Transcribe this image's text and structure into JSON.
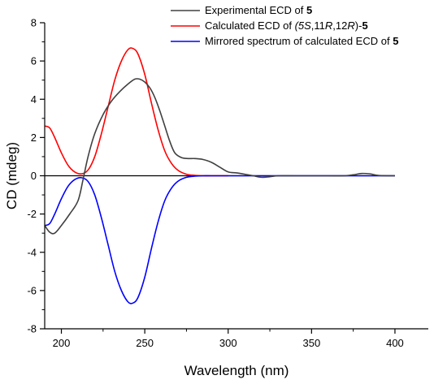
{
  "chart_data": {
    "type": "line",
    "xlabel": "Wavelength (nm)",
    "ylabel": "CD (mdeg)",
    "xlim": [
      190,
      420
    ],
    "ylim": [
      -8,
      8
    ],
    "x_ticks": [
      200,
      250,
      300,
      350,
      400
    ],
    "y_ticks": [
      -8,
      -6,
      -4,
      -2,
      0,
      2,
      4,
      6,
      8
    ],
    "grid": false,
    "legend_position": "top-right",
    "series": [
      {
        "name": "Experimental ECD of 5",
        "legend_parts": [
          {
            "text": "Experimental ECD of "
          },
          {
            "text": "5",
            "bold": true
          }
        ],
        "color": "#404040",
        "x": [
          190,
          193,
          196,
          200,
          205,
          210,
          213,
          216,
          220,
          225,
          230,
          235,
          240,
          244,
          247,
          250,
          253,
          256,
          259,
          262,
          265,
          268,
          272,
          276,
          280,
          285,
          290,
          295,
          300,
          305,
          310,
          315,
          320,
          325,
          330,
          340,
          350,
          360,
          370,
          375,
          380,
          385,
          390,
          400
        ],
        "y": [
          -2.6,
          -2.95,
          -3.0,
          -2.6,
          -2.0,
          -1.3,
          -0.2,
          1.0,
          2.2,
          3.2,
          3.9,
          4.4,
          4.8,
          5.05,
          5.05,
          4.9,
          4.6,
          4.1,
          3.4,
          2.6,
          1.8,
          1.2,
          0.95,
          0.9,
          0.9,
          0.85,
          0.7,
          0.45,
          0.2,
          0.15,
          0.08,
          0.0,
          -0.08,
          -0.05,
          0.0,
          0.0,
          0.0,
          0.0,
          0.0,
          0.05,
          0.12,
          0.1,
          0.02,
          0.0
        ]
      },
      {
        "name": "Calculated ECD of (5S,11R,12R)-5",
        "legend_parts": [
          {
            "text": "Calculated ECD of "
          },
          {
            "text": "(5",
            "italic": true
          },
          {
            "text": "S",
            "italic": true
          },
          {
            "text": ",11"
          },
          {
            "text": "R",
            "italic": true
          },
          {
            "text": ",12"
          },
          {
            "text": "R",
            "italic": true
          },
          {
            "text": ")-"
          },
          {
            "text": "5",
            "bold": true
          }
        ],
        "color": "#ff0000",
        "x": [
          190,
          193,
          196,
          200,
          204,
          208,
          212,
          216,
          220,
          224,
          228,
          232,
          236,
          240,
          243,
          246,
          250,
          254,
          258,
          262,
          266,
          270,
          275,
          280,
          285,
          290,
          300
        ],
        "y": [
          2.6,
          2.5,
          2.0,
          1.2,
          0.55,
          0.2,
          0.1,
          0.3,
          1.0,
          2.2,
          3.6,
          5.0,
          6.0,
          6.6,
          6.65,
          6.35,
          5.3,
          3.8,
          2.4,
          1.3,
          0.65,
          0.28,
          0.08,
          0.02,
          0.0,
          0.0,
          0.0
        ]
      },
      {
        "name": "Mirrored spectrum of calculated ECD of 5",
        "legend_parts": [
          {
            "text": "Mirrored spectrum of calculated ECD of "
          },
          {
            "text": "5",
            "bold": true
          }
        ],
        "color": "#0000ff",
        "x": [
          190,
          193,
          196,
          200,
          204,
          208,
          212,
          216,
          220,
          224,
          228,
          232,
          236,
          240,
          243,
          246,
          250,
          254,
          258,
          262,
          266,
          270,
          275,
          280,
          285,
          290,
          300,
          320,
          340,
          360,
          380,
          400
        ],
        "y": [
          -2.6,
          -2.5,
          -2.0,
          -1.2,
          -0.55,
          -0.2,
          -0.1,
          -0.3,
          -1.0,
          -2.2,
          -3.6,
          -5.0,
          -6.0,
          -6.6,
          -6.65,
          -6.35,
          -5.3,
          -3.8,
          -2.4,
          -1.3,
          -0.65,
          -0.28,
          -0.08,
          -0.02,
          0.0,
          0.0,
          0.0,
          0.0,
          0.0,
          0.0,
          0.0,
          0.0
        ]
      }
    ],
    "reference_line": {
      "y": 0,
      "x_range": [
        190,
        400
      ],
      "color": "#000000"
    }
  }
}
